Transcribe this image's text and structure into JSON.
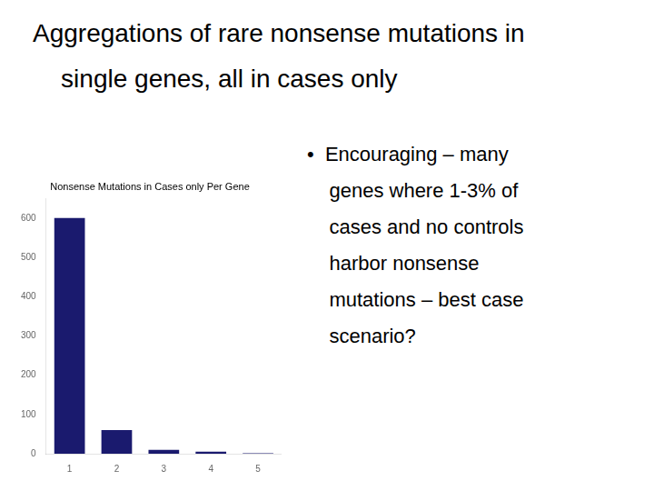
{
  "title": [
    "Aggregations of rare nonsense mutations in",
    "    single genes, all in cases only"
  ],
  "annotations": [
    "•  Encouraging – many",
    "    genes where 1-3% of",
    "    cases and no controls",
    "    harbor nonsense",
    "    mutations – best case",
    "    scenario?"
  ],
  "chart_data": {
    "type": "bar",
    "title": "Nonsense Mutations in Cases only Per Gene",
    "x": [
      1,
      2,
      3,
      4,
      5
    ],
    "values": [
      600,
      60,
      10,
      5,
      1
    ],
    "color": "#1a1a6e",
    "xlim": [
      0.5,
      5.5
    ],
    "xticks": [
      1,
      2,
      3,
      4,
      5
    ],
    "ylim": [
      0,
      650
    ],
    "yticks": [
      0,
      100,
      200,
      300,
      400,
      500,
      600
    ],
    "grid": false
  }
}
